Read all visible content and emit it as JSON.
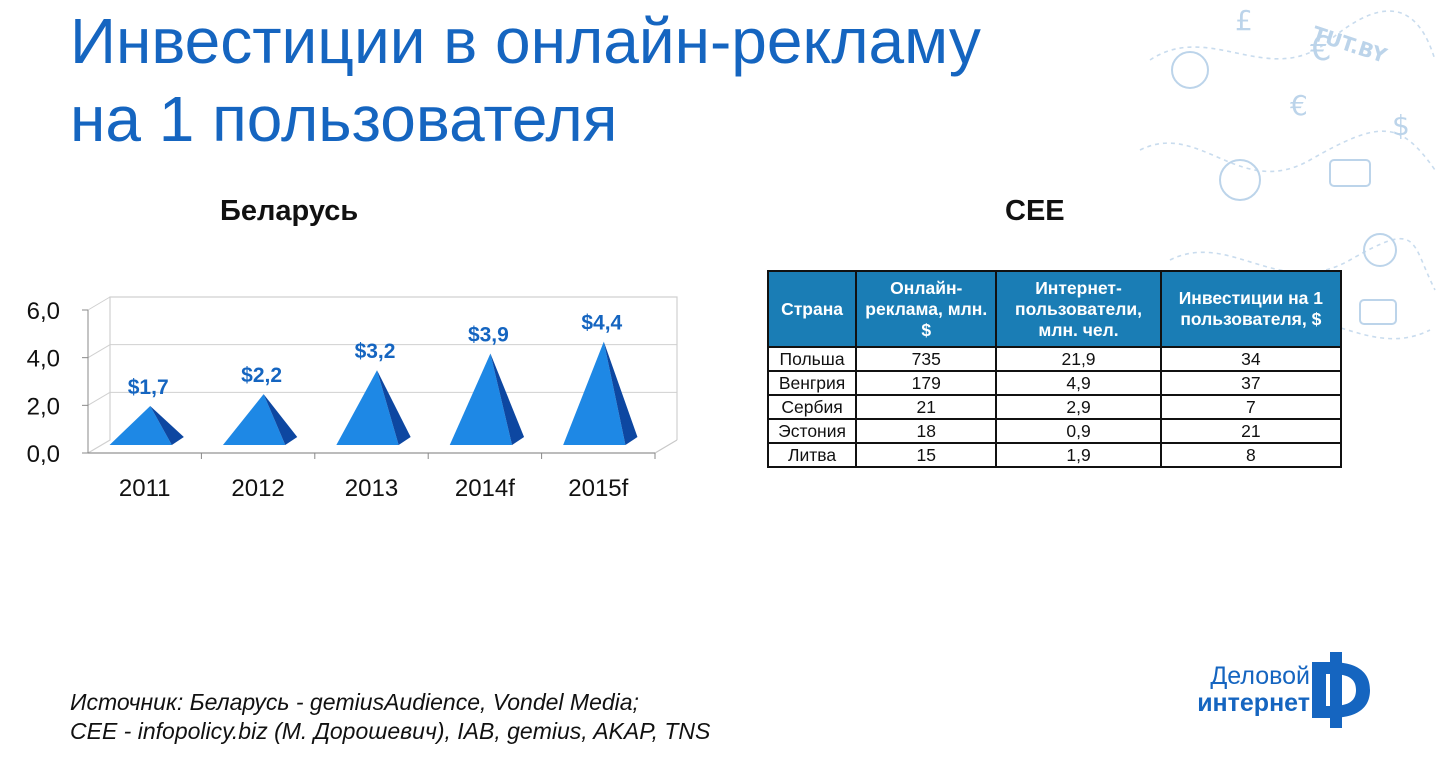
{
  "slide": {
    "title_line1": "Инвестиции в онлайн-рекламу",
    "title_line2": "на 1 пользователя",
    "chart_title": "Беларусь",
    "table_title": "CEE",
    "source_line1": "Источник: Беларусь - gemiusAudience, Vondel Media;",
    "source_line2": "CEE - infopolicy.biz (М. Дорошевич), IAB, gemius, AKAP, TNS",
    "logo_line1": "Деловой",
    "logo_line2": "интернет",
    "watermark_text": "TUT.BY",
    "colors": {
      "title": "#1565c0",
      "pyramid": "#1e88e5",
      "pyramid_dark": "#0d47a1",
      "table_header": "#1a7db5"
    }
  },
  "chart_data": {
    "type": "bar",
    "title": "Беларусь",
    "categories": [
      "2011",
      "2012",
      "2013",
      "2014f",
      "2015f"
    ],
    "values": [
      1.7,
      2.2,
      3.2,
      3.9,
      4.4
    ],
    "data_labels": [
      "$1,7",
      "$2,2",
      "$3,2",
      "$3,9",
      "$4,4"
    ],
    "y_ticks": [
      "0,0",
      "2,0",
      "4,0",
      "6,0"
    ],
    "ylim": [
      0,
      6
    ],
    "grid": true,
    "mark_shape": "pyramid-3d"
  },
  "table": {
    "headers": [
      "Страна",
      "Онлайн-реклама, млн. $",
      "Интернет-пользователи, млн. чел.",
      "Инвестиции на 1 пользователя, $"
    ],
    "rows": [
      [
        "Польша",
        "735",
        "21,9",
        "34"
      ],
      [
        "Венгрия",
        "179",
        "4,9",
        "37"
      ],
      [
        "Сербия",
        "21",
        "2,9",
        "7"
      ],
      [
        "Эстония",
        "18",
        "0,9",
        "21"
      ],
      [
        "Литва",
        "15",
        "1,9",
        "8"
      ]
    ]
  }
}
